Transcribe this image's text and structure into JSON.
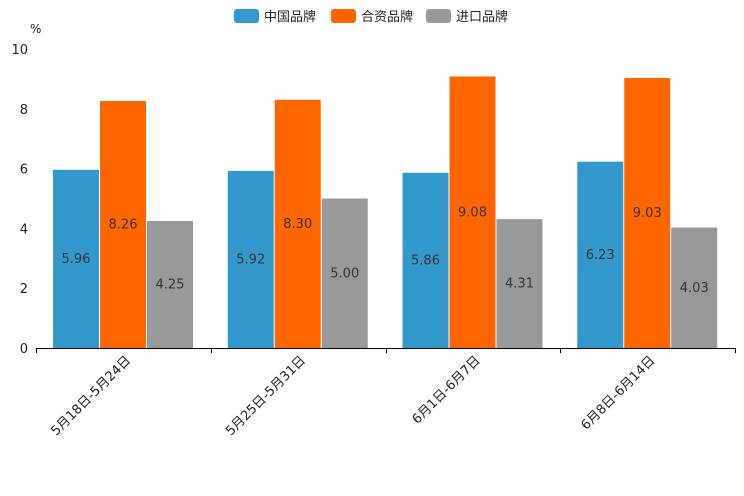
{
  "chart_data": {
    "type": "bar",
    "title": "",
    "xlabel": "",
    "ylabel": "%",
    "ylim": [
      0,
      10
    ],
    "yticks": [
      0,
      2,
      4,
      6,
      8,
      10
    ],
    "legend_position": "top-center",
    "categories": [
      "5月18日-5月24日",
      "5月25日-5月31日",
      "6月1日-6月7日",
      "6月8日-6月14日"
    ],
    "series": [
      {
        "name": "中国品牌",
        "color": "#3399CC",
        "values": [
          5.96,
          5.92,
          5.86,
          6.23
        ],
        "labels": [
          "5.96",
          "5.92",
          "5.86",
          "6.23"
        ]
      },
      {
        "name": "合资品牌",
        "color": "#FF6600",
        "values": [
          8.26,
          8.3,
          9.08,
          9.03
        ],
        "labels": [
          "8.26",
          "8.30",
          "9.08",
          "9.03"
        ]
      },
      {
        "name": "进口品牌",
        "color": "#999999",
        "values": [
          4.25,
          5.0,
          4.31,
          4.03
        ],
        "labels": [
          "4.25",
          "5.00",
          "4.31",
          "4.03"
        ]
      }
    ]
  }
}
